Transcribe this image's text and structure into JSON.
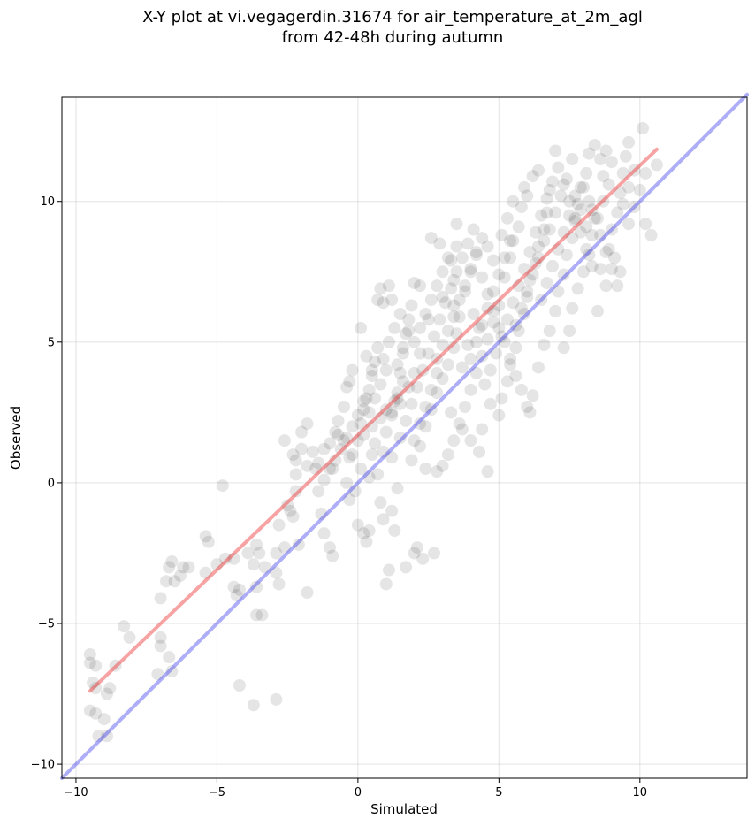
{
  "chart_data": {
    "type": "scatter",
    "title": [
      "X-Y plot at vi.vegagerdin.31674 for air_temperature_at_2m_agl",
      "from 42-48h during autumn"
    ],
    "xlabel": "Simulated",
    "ylabel": "Observed",
    "xlim": [
      -10.5,
      13.8
    ],
    "ylim": [
      -10.5,
      13.7
    ],
    "xticks": [
      -10,
      -5,
      0,
      5,
      10
    ],
    "yticks": [
      -10,
      -5,
      0,
      5,
      10
    ],
    "xtick_labels": [
      "−10",
      "−5",
      "0",
      "5",
      "10"
    ],
    "ytick_labels": [
      "−10",
      "−5",
      "0",
      "5",
      "10"
    ],
    "grid": true,
    "point_color": "#000000",
    "point_opacity": 0.1,
    "points": [
      [
        -9.5,
        -6.1
      ],
      [
        -9.5,
        -6.4
      ],
      [
        -9.3,
        -6.5
      ],
      [
        -9.4,
        -7.1
      ],
      [
        -9.3,
        -7.3
      ],
      [
        -9.5,
        -8.1
      ],
      [
        -9.3,
        -8.2
      ],
      [
        -9.2,
        -9.0
      ],
      [
        -8.9,
        -9.0
      ],
      [
        -9.0,
        -8.4
      ],
      [
        -8.8,
        -7.3
      ],
      [
        -8.9,
        -7.5
      ],
      [
        -8.6,
        -6.5
      ],
      [
        -8.3,
        -5.1
      ],
      [
        -8.1,
        -5.5
      ],
      [
        -7.1,
        -6.8
      ],
      [
        -7.0,
        -5.5
      ],
      [
        -7.0,
        -5.8
      ],
      [
        -7.0,
        -4.1
      ],
      [
        -6.8,
        -3.5
      ],
      [
        -6.7,
        -3.0
      ],
      [
        -6.6,
        -2.8
      ],
      [
        -6.5,
        -3.5
      ],
      [
        -6.3,
        -3.3
      ],
      [
        -6.2,
        -3.0
      ],
      [
        -6.0,
        -3.0
      ],
      [
        -6.6,
        -6.7
      ],
      [
        -6.7,
        -6.2
      ],
      [
        -5.4,
        -1.9
      ],
      [
        -5.3,
        -2.1
      ],
      [
        -5.4,
        -3.2
      ],
      [
        -5.0,
        -2.9
      ],
      [
        -4.8,
        -0.1
      ],
      [
        -4.7,
        -2.7
      ],
      [
        -4.4,
        -2.7
      ],
      [
        -4.4,
        -3.7
      ],
      [
        -4.2,
        -3.8
      ],
      [
        -4.2,
        -7.2
      ],
      [
        -4.3,
        -4.0
      ],
      [
        -3.9,
        -2.5
      ],
      [
        -3.7,
        -2.9
      ],
      [
        -3.6,
        -2.2
      ],
      [
        -3.5,
        -2.5
      ],
      [
        -3.6,
        -3.7
      ],
      [
        -3.6,
        -4.7
      ],
      [
        -3.4,
        -4.7
      ],
      [
        -3.3,
        -3.0
      ],
      [
        -3.7,
        -7.9
      ],
      [
        -2.9,
        -2.5
      ],
      [
        -2.9,
        -3.2
      ],
      [
        -2.8,
        -3.6
      ],
      [
        -2.9,
        -7.7
      ],
      [
        -2.8,
        -1.5
      ],
      [
        -2.6,
        -2.3
      ],
      [
        -2.4,
        -1.0
      ],
      [
        -2.5,
        -0.8
      ],
      [
        -2.3,
        -1.2
      ],
      [
        -2.2,
        -0.3
      ],
      [
        -2.1,
        -2.2
      ],
      [
        -1.8,
        -3.9
      ],
      [
        -2.2,
        0.3
      ],
      [
        -2.3,
        1.0
      ],
      [
        -2.6,
        1.5
      ],
      [
        -2.0,
        1.8
      ],
      [
        -1.8,
        2.1
      ],
      [
        -1.5,
        0.5
      ],
      [
        -1.4,
        -0.3
      ],
      [
        -1.3,
        -1.1
      ],
      [
        -1.2,
        -1.8
      ],
      [
        -1.0,
        -2.3
      ],
      [
        -0.9,
        -2.6
      ],
      [
        -1.2,
        1.2
      ],
      [
        -0.9,
        0.5
      ],
      [
        -0.7,
        1.7
      ],
      [
        -0.7,
        2.2
      ],
      [
        -0.5,
        2.7
      ],
      [
        -0.4,
        3.4
      ],
      [
        -0.3,
        3.6
      ],
      [
        -0.2,
        4.0
      ],
      [
        -0.2,
        1.0
      ],
      [
        -0.4,
        0.0
      ],
      [
        -0.3,
        -0.6
      ],
      [
        -0.1,
        -0.3
      ],
      [
        0.0,
        -1.5
      ],
      [
        0.2,
        -1.8
      ],
      [
        0.3,
        -2.1
      ],
      [
        0.4,
        -1.7
      ],
      [
        0.0,
        1.5
      ],
      [
        0.1,
        2.1
      ],
      [
        0.2,
        2.6
      ],
      [
        0.3,
        3.0
      ],
      [
        0.4,
        3.3
      ],
      [
        0.5,
        3.8
      ],
      [
        0.6,
        4.3
      ],
      [
        0.7,
        4.8
      ],
      [
        0.7,
        6.5
      ],
      [
        0.8,
        6.9
      ],
      [
        0.9,
        6.4
      ],
      [
        1.1,
        7.0
      ],
      [
        1.2,
        6.5
      ],
      [
        0.1,
        5.5
      ],
      [
        0.5,
        1.0
      ],
      [
        0.7,
        0.3
      ],
      [
        0.8,
        -0.7
      ],
      [
        0.9,
        -1.3
      ],
      [
        1.0,
        -3.6
      ],
      [
        1.1,
        -3.1
      ],
      [
        1.2,
        -1.0
      ],
      [
        1.3,
        -1.7
      ],
      [
        1.4,
        -0.2
      ],
      [
        1.0,
        1.8
      ],
      [
        1.2,
        2.5
      ],
      [
        1.4,
        3.2
      ],
      [
        1.5,
        3.9
      ],
      [
        1.6,
        4.6
      ],
      [
        1.7,
        5.3
      ],
      [
        1.8,
        5.8
      ],
      [
        1.9,
        6.3
      ],
      [
        2.0,
        7.1
      ],
      [
        2.2,
        7.0
      ],
      [
        1.7,
        -3.0
      ],
      [
        2.0,
        -2.5
      ],
      [
        2.1,
        -2.3
      ],
      [
        2.3,
        -2.7
      ],
      [
        2.7,
        -2.5
      ],
      [
        1.9,
        0.8
      ],
      [
        2.2,
        1.3
      ],
      [
        2.4,
        2.0
      ],
      [
        2.6,
        2.6
      ],
      [
        2.8,
        3.2
      ],
      [
        3.0,
        3.7
      ],
      [
        3.2,
        4.2
      ],
      [
        3.4,
        4.8
      ],
      [
        3.5,
        5.3
      ],
      [
        3.6,
        5.9
      ],
      [
        3.4,
        7.2
      ],
      [
        3.3,
        7.9
      ],
      [
        3.5,
        8.4
      ],
      [
        2.6,
        8.7
      ],
      [
        2.9,
        8.5
      ],
      [
        3.5,
        9.2
      ],
      [
        3.0,
        6.6
      ],
      [
        2.5,
        5.8
      ],
      [
        2.2,
        4.6
      ],
      [
        2.0,
        3.9
      ],
      [
        1.8,
        3.4
      ],
      [
        1.5,
        2.8
      ],
      [
        2.4,
        0.5
      ],
      [
        2.8,
        0.4
      ],
      [
        3.0,
        0.6
      ],
      [
        3.2,
        1.0
      ],
      [
        3.4,
        1.5
      ],
      [
        3.6,
        2.1
      ],
      [
        3.8,
        2.7
      ],
      [
        4.0,
        3.3
      ],
      [
        4.2,
        3.9
      ],
      [
        4.4,
        4.5
      ],
      [
        4.6,
        5.1
      ],
      [
        4.8,
        5.7
      ],
      [
        5.0,
        6.3
      ],
      [
        3.8,
        6.8
      ],
      [
        4.0,
        7.5
      ],
      [
        4.2,
        8.1
      ],
      [
        4.4,
        8.7
      ],
      [
        4.6,
        8.4
      ],
      [
        4.8,
        7.9
      ],
      [
        4.1,
        6.0
      ],
      [
        4.3,
        5.5
      ],
      [
        3.9,
        4.9
      ],
      [
        3.7,
        4.1
      ],
      [
        3.3,
        2.5
      ],
      [
        3.7,
        1.9
      ],
      [
        4.0,
        1.5
      ],
      [
        4.3,
        1.1
      ],
      [
        4.4,
        1.9
      ],
      [
        4.6,
        0.4
      ],
      [
        4.7,
        2.8
      ],
      [
        5.0,
        2.4
      ],
      [
        5.1,
        3.0
      ],
      [
        5.3,
        3.6
      ],
      [
        5.4,
        4.2
      ],
      [
        5.6,
        4.8
      ],
      [
        5.7,
        5.4
      ],
      [
        5.9,
        6.0
      ],
      [
        6.0,
        6.6
      ],
      [
        6.1,
        7.2
      ],
      [
        6.3,
        7.8
      ],
      [
        6.4,
        8.4
      ],
      [
        6.6,
        9.0
      ],
      [
        6.7,
        9.6
      ],
      [
        5.2,
        7.3
      ],
      [
        5.4,
        8.0
      ],
      [
        5.5,
        8.6
      ],
      [
        5.7,
        9.1
      ],
      [
        5.8,
        9.8
      ],
      [
        5.9,
        10.5
      ],
      [
        6.2,
        10.9
      ],
      [
        6.4,
        11.1
      ],
      [
        6.0,
        10.2
      ],
      [
        5.5,
        10.0
      ],
      [
        5.3,
        9.4
      ],
      [
        5.1,
        8.8
      ],
      [
        6.2,
        3.1
      ],
      [
        6.1,
        2.5
      ],
      [
        6.4,
        4.1
      ],
      [
        6.6,
        4.9
      ],
      [
        6.8,
        5.4
      ],
      [
        7.0,
        6.1
      ],
      [
        7.1,
        6.8
      ],
      [
        7.3,
        7.4
      ],
      [
        7.4,
        8.1
      ],
      [
        7.6,
        8.7
      ],
      [
        7.7,
        9.3
      ],
      [
        7.8,
        9.9
      ],
      [
        7.9,
        10.5
      ],
      [
        8.1,
        11.0
      ],
      [
        8.2,
        11.7
      ],
      [
        8.4,
        12.0
      ],
      [
        8.6,
        11.5
      ],
      [
        8.7,
        10.9
      ],
      [
        7.3,
        4.8
      ],
      [
        7.5,
        5.4
      ],
      [
        7.6,
        6.2
      ],
      [
        7.8,
        6.9
      ],
      [
        8.0,
        7.5
      ],
      [
        8.2,
        8.1
      ],
      [
        8.3,
        8.8
      ],
      [
        8.5,
        9.4
      ],
      [
        8.7,
        10.0
      ],
      [
        8.9,
        10.6
      ],
      [
        8.5,
        6.1
      ],
      [
        8.8,
        7.0
      ],
      [
        8.6,
        7.6
      ],
      [
        8.9,
        8.3
      ],
      [
        9.0,
        9.0
      ],
      [
        9.2,
        9.6
      ],
      [
        9.3,
        10.3
      ],
      [
        9.4,
        11.0
      ],
      [
        9.5,
        11.6
      ],
      [
        9.6,
        12.1
      ],
      [
        9.1,
        8.0
      ],
      [
        9.3,
        7.5
      ],
      [
        9.6,
        9.2
      ],
      [
        9.8,
        9.8
      ],
      [
        10.0,
        10.4
      ],
      [
        10.2,
        11.0
      ],
      [
        10.4,
        8.8
      ],
      [
        10.2,
        9.2
      ],
      [
        10.1,
        12.6
      ],
      [
        10.6,
        11.3
      ],
      [
        0.5,
        2.0
      ],
      [
        0.8,
        2.3
      ],
      [
        1.0,
        2.6
      ],
      [
        1.3,
        2.9
      ],
      [
        0.2,
        1.7
      ],
      [
        0.6,
        1.4
      ],
      [
        0.9,
        1.1
      ],
      [
        1.2,
        0.9
      ],
      [
        -0.5,
        1.5
      ],
      [
        -0.8,
        1.8
      ],
      [
        -1.0,
        1.4
      ],
      [
        -0.3,
        0.9
      ],
      [
        0.1,
        0.5
      ],
      [
        0.4,
        0.2
      ],
      [
        1.5,
        1.6
      ],
      [
        1.7,
        2.2
      ],
      [
        1.9,
        2.8
      ],
      [
        2.1,
        3.4
      ],
      [
        2.3,
        4.0
      ],
      [
        2.5,
        4.6
      ],
      [
        2.7,
        5.2
      ],
      [
        2.9,
        5.8
      ],
      [
        3.1,
        6.4
      ],
      [
        3.3,
        6.9
      ],
      [
        3.5,
        7.5
      ],
      [
        3.7,
        8.0
      ],
      [
        3.9,
        8.5
      ],
      [
        4.1,
        9.0
      ],
      [
        2.8,
        4.4
      ],
      [
        3.0,
        4.9
      ],
      [
        3.2,
        5.4
      ],
      [
        3.4,
        5.9
      ],
      [
        3.6,
        6.5
      ],
      [
        3.8,
        7.0
      ],
      [
        4.0,
        7.6
      ],
      [
        4.2,
        8.2
      ],
      [
        4.4,
        7.3
      ],
      [
        4.6,
        6.7
      ],
      [
        4.8,
        6.1
      ],
      [
        5.0,
        5.5
      ],
      [
        5.2,
        5.0
      ],
      [
        5.4,
        4.4
      ],
      [
        5.6,
        3.8
      ],
      [
        5.8,
        3.3
      ],
      [
        6.0,
        2.7
      ],
      [
        4.5,
        3.5
      ],
      [
        4.7,
        4.0
      ],
      [
        4.9,
        4.6
      ],
      [
        5.1,
        5.2
      ],
      [
        5.3,
        5.8
      ],
      [
        5.5,
        6.4
      ],
      [
        5.7,
        7.0
      ],
      [
        5.9,
        7.6
      ],
      [
        6.1,
        8.2
      ],
      [
        6.3,
        8.9
      ],
      [
        6.5,
        9.5
      ],
      [
        6.7,
        10.1
      ],
      [
        6.9,
        10.7
      ],
      [
        7.1,
        11.2
      ],
      [
        7.3,
        10.6
      ],
      [
        7.5,
        10.0
      ],
      [
        7.7,
        9.4
      ],
      [
        7.9,
        8.9
      ],
      [
        8.1,
        8.3
      ],
      [
        8.3,
        7.7
      ],
      [
        6.5,
        6.5
      ],
      [
        6.7,
        7.1
      ],
      [
        6.9,
        7.7
      ],
      [
        7.1,
        8.3
      ],
      [
        7.3,
        8.9
      ],
      [
        7.5,
        9.5
      ],
      [
        7.7,
        10.2
      ],
      [
        7.9,
        9.7
      ],
      [
        8.1,
        9.1
      ],
      [
        8.3,
        9.7
      ],
      [
        6.8,
        9.0
      ],
      [
        7.0,
        9.6
      ],
      [
        7.2,
        10.2
      ],
      [
        7.4,
        10.8
      ],
      [
        6.6,
        8.6
      ],
      [
        6.4,
        8.0
      ],
      [
        6.2,
        7.4
      ],
      [
        6.0,
        6.8
      ],
      [
        5.8,
        6.2
      ],
      [
        5.6,
        5.6
      ],
      [
        2.0,
        1.5
      ],
      [
        2.2,
        2.1
      ],
      [
        2.4,
        2.7
      ],
      [
        2.6,
        3.3
      ],
      [
        2.8,
        3.9
      ],
      [
        1.4,
        4.2
      ],
      [
        1.6,
        4.8
      ],
      [
        1.8,
        5.4
      ],
      [
        1.6,
        3.6
      ],
      [
        1.4,
        3.0
      ],
      [
        1.2,
        2.4
      ],
      [
        1.0,
        4.0
      ],
      [
        0.8,
        3.5
      ],
      [
        0.6,
        3.0
      ],
      [
        0.4,
        2.5
      ],
      [
        0.2,
        2.9
      ],
      [
        0.0,
        2.4
      ],
      [
        -0.2,
        2.0
      ],
      [
        -0.4,
        1.6
      ],
      [
        -0.6,
        1.2
      ],
      [
        -0.8,
        0.8
      ],
      [
        -1.0,
        0.5
      ],
      [
        -1.2,
        0.1
      ],
      [
        -1.4,
        0.7
      ],
      [
        -1.6,
        1.1
      ],
      [
        -1.8,
        0.6
      ],
      [
        -2.0,
        1.2
      ],
      [
        -2.2,
        0.8
      ],
      [
        0.3,
        4.5
      ],
      [
        0.5,
        4.0
      ],
      [
        0.9,
        4.4
      ],
      [
        1.1,
        5.0
      ],
      [
        1.3,
        5.5
      ],
      [
        1.5,
        6.0
      ],
      [
        2.0,
        5.0
      ],
      [
        2.2,
        5.5
      ],
      [
        2.4,
        6.0
      ],
      [
        2.6,
        6.5
      ],
      [
        2.8,
        7.0
      ],
      [
        3.0,
        7.5
      ],
      [
        3.2,
        8.0
      ],
      [
        3.4,
        6.3
      ],
      [
        4.0,
        4.4
      ],
      [
        4.2,
        5.0
      ],
      [
        4.4,
        5.6
      ],
      [
        4.6,
        6.2
      ],
      [
        4.8,
        6.8
      ],
      [
        5.0,
        7.4
      ],
      [
        5.2,
        8.0
      ],
      [
        5.4,
        8.6
      ],
      [
        8.0,
        10.5
      ],
      [
        8.2,
        10.0
      ],
      [
        8.4,
        9.4
      ],
      [
        8.6,
        8.8
      ],
      [
        8.8,
        8.2
      ],
      [
        9.0,
        7.6
      ],
      [
        9.2,
        7.0
      ],
      [
        9.4,
        9.9
      ],
      [
        9.6,
        10.5
      ],
      [
        9.8,
        11.1
      ],
      [
        9.0,
        11.4
      ],
      [
        8.8,
        11.8
      ],
      [
        7.6,
        11.5
      ],
      [
        7.0,
        11.8
      ],
      [
        6.8,
        10.4
      ]
    ],
    "series": [
      {
        "type": "line",
        "color": "#ee3333",
        "opacity": 0.45,
        "x": [
          -9.5,
          10.6
        ],
        "y": [
          -7.4,
          11.85
        ]
      },
      {
        "type": "line",
        "color": "#3333ee",
        "opacity": 0.4,
        "x": [
          -10.5,
          13.8
        ],
        "y": [
          -10.5,
          13.8
        ]
      }
    ]
  }
}
